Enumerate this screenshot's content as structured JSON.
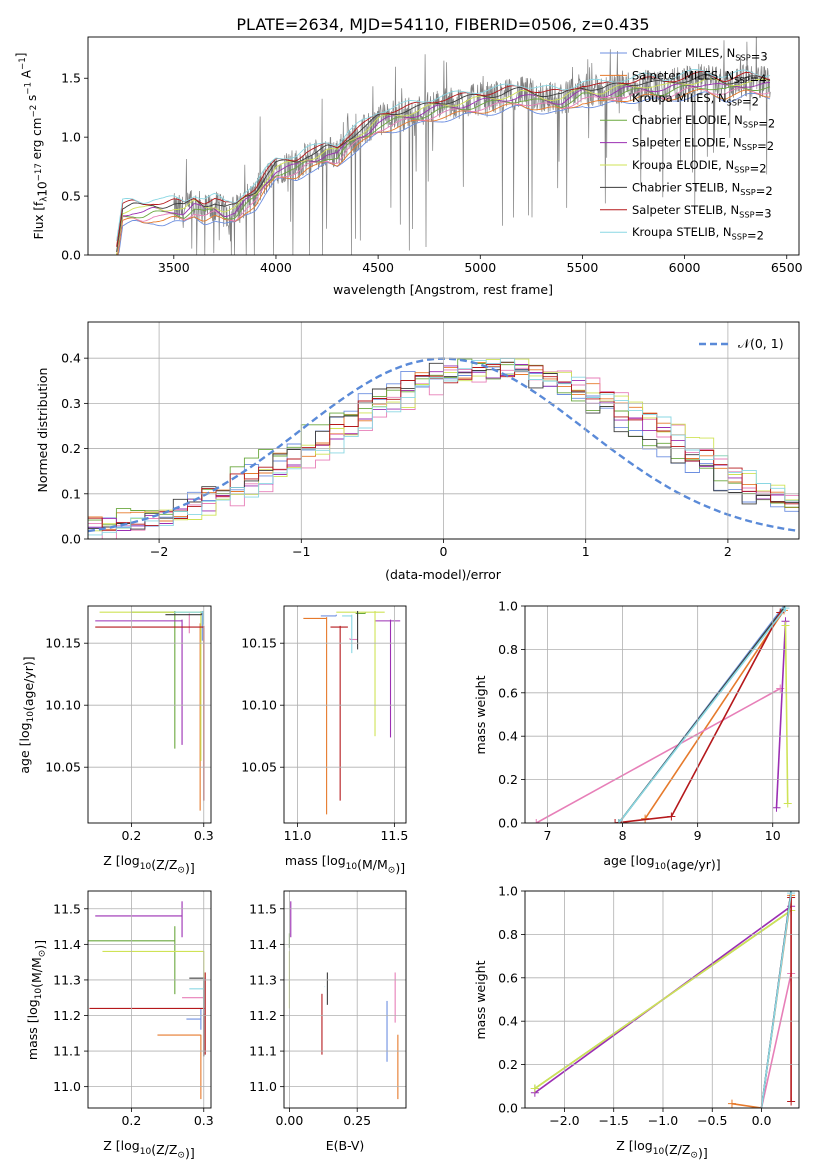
{
  "figure_title": "PLATE=2634, MJD=54110, FIBERID=0506, z=0.435",
  "colors": {
    "Chabrier MILES": "#6d8fe0",
    "Salpeter MILES": "#e67a2c",
    "Kroupa MILES": "#e77fb8",
    "Chabrier ELODIE": "#6aa83e",
    "Salpeter ELODIE": "#9b2fb3",
    "Kroupa ELODIE": "#cfe356",
    "Chabrier STELIB": "#3c3c3c",
    "Salpeter STELIB": "#b5191c",
    "Kroupa STELIB": "#8ad7e3",
    "data": "#808080",
    "gaussian": "#5a8ad8"
  },
  "chart_data": [
    {
      "id": "spectrum",
      "type": "line",
      "xlabel": "wavelength [Angstrom, rest frame]",
      "ylabel_main": "Flux [f",
      "ylabel_sub": "λ",
      "ylabel_rest": "10",
      "ylabel_exp": "−17",
      "ylabel_tail": " erg cm",
      "ylabel_exp2": "−2",
      "ylabel_s": " s",
      "ylabel_exp3": "−1",
      "ylabel_A": " A",
      "ylabel_exp4": "−1",
      "ylabel_end": "]",
      "xlim": [
        3080,
        6560
      ],
      "ylim": [
        0,
        1.85
      ],
      "xticks": [
        "3500",
        "4000",
        "4500",
        "5000",
        "5500",
        "6000",
        "6500"
      ],
      "yticks": [
        "0.0",
        "0.5",
        "1.0",
        "1.5"
      ],
      "legend": [
        {
          "model": "Chabrier MILES",
          "label": "Chabrier MILES, N",
          "nssp": "=3"
        },
        {
          "model": "Salpeter MILES",
          "label": "Salpeter MILES, N",
          "nssp": "=4"
        },
        {
          "model": "Kroupa MILES",
          "label": "Kroupa MILES, N",
          "nssp": "=2"
        },
        {
          "model": "Chabrier ELODIE",
          "label": "Chabrier ELODIE, N",
          "nssp": "=2"
        },
        {
          "model": "Salpeter ELODIE",
          "label": "Salpeter ELODIE, N",
          "nssp": "=2"
        },
        {
          "model": "Kroupa ELODIE",
          "label": "Kroupa ELODIE, N",
          "nssp": "=2"
        },
        {
          "model": "Chabrier STELIB",
          "label": "Chabrier STELIB, N",
          "nssp": "=2"
        },
        {
          "model": "Salpeter STELIB",
          "label": "Salpeter STELIB, N",
          "nssp": "=3"
        },
        {
          "model": "Kroupa STELIB",
          "label": "Kroupa STELIB, N",
          "nssp": "=2"
        }
      ],
      "nssp_sub": "SSP",
      "continuum_x": [
        3220,
        3250,
        3300,
        3350,
        3400,
        3450,
        3500,
        3550,
        3600,
        3650,
        3700,
        3750,
        3800,
        3850,
        3900,
        3950,
        4000,
        4050,
        4100,
        4150,
        4200,
        4250,
        4300,
        4350,
        4400,
        4450,
        4500,
        4550,
        4600,
        4700,
        4800,
        4900,
        5000,
        5100,
        5200,
        5300,
        5400,
        5500,
        5600,
        5700,
        5800,
        5900,
        6000,
        6100,
        6200,
        6300,
        6400
      ],
      "continuum_y": [
        0.0,
        0.35,
        0.37,
        0.36,
        0.38,
        0.37,
        0.38,
        0.36,
        0.42,
        0.38,
        0.4,
        0.35,
        0.36,
        0.45,
        0.5,
        0.62,
        0.72,
        0.74,
        0.75,
        0.8,
        0.82,
        0.86,
        0.85,
        0.94,
        1.0,
        1.05,
        1.12,
        1.15,
        1.17,
        1.2,
        1.25,
        1.27,
        1.3,
        1.32,
        1.35,
        1.32,
        1.3,
        1.38,
        1.36,
        1.4,
        1.42,
        1.4,
        1.44,
        1.46,
        1.42,
        1.45,
        1.44
      ],
      "data_range": [
        3500,
        6420
      ]
    },
    {
      "id": "residuals",
      "type": "line",
      "xlabel": "(data-model)/error",
      "ylabel": "Normed distribution",
      "xlim": [
        -2.5,
        2.5
      ],
      "ylim": [
        0,
        0.48
      ],
      "xticks": [
        "−2",
        "−1",
        "0",
        "1",
        "2"
      ],
      "yticks": [
        "0.0",
        "0.1",
        "0.2",
        "0.3",
        "0.4"
      ],
      "legend_label": "𝒩(0, 1)",
      "gaussian": {
        "mu": 0,
        "sigma": 1
      },
      "hist_peak_shift": 0.6,
      "hist_sigma": 1.15,
      "hist_peak": 0.38
    },
    {
      "id": "age_vs_Z",
      "type": "scatter",
      "xlabel": "Z [log",
      "xlabel_tail": "(Z/Z",
      "xlabel_end": ")]",
      "ylabel": "age  [log",
      "ylabel_tail": "(age/yr)]",
      "xlim": [
        0.14,
        0.31
      ],
      "ylim": [
        10.005,
        10.18
      ],
      "xticks": [
        "0.2",
        "0.3"
      ],
      "yticks": [
        "10.05",
        "10.10",
        "10.15"
      ],
      "points": [
        {
          "model": "Chabrier MILES",
          "x": 0.298,
          "y": 10.172,
          "xerr": 0.0,
          "yerr_lo": 0.02,
          "yerr_hi": 0.003
        },
        {
          "model": "Salpeter MILES",
          "x": 0.295,
          "y": 10.165,
          "xerr": 0.0,
          "yerr_lo": 0.15,
          "yerr_hi": 0.0
        },
        {
          "model": "Kroupa MILES",
          "x": 0.28,
          "y": 10.168,
          "xerr": 0.0,
          "yerr_lo": 0.01,
          "yerr_hi": 0.005
        },
        {
          "model": "Chabrier ELODIE",
          "x": 0.26,
          "y": 10.175,
          "xerr": 0.06,
          "yerr_lo": 0.11,
          "yerr_hi": 0.0
        },
        {
          "model": "Salpeter ELODIE",
          "x": 0.27,
          "y": 10.168,
          "xerr": 0.12,
          "yerr_lo": 0.1,
          "yerr_hi": 0.0
        },
        {
          "model": "Kroupa ELODIE",
          "x": 0.296,
          "y": 10.175,
          "xerr": 0.14,
          "yerr_lo": 0.12,
          "yerr_hi": 0.0
        },
        {
          "model": "Chabrier STELIB",
          "x": 0.297,
          "y": 10.173,
          "xerr": 0.05,
          "yerr_lo": 0.0,
          "yerr_hi": 0.0
        },
        {
          "model": "Salpeter STELIB",
          "x": 0.3,
          "y": 10.163,
          "xerr": 0.15,
          "yerr_lo": 0.14,
          "yerr_hi": 0.0
        },
        {
          "model": "Kroupa STELIB",
          "x": 0.299,
          "y": 10.175,
          "xerr": 0.04,
          "yerr_lo": 0.01,
          "yerr_hi": 0.0
        }
      ]
    },
    {
      "id": "age_vs_mass",
      "type": "scatter",
      "xlabel": "mass [log",
      "xlabel_tail": "(M/M",
      "xlabel_end": ")]",
      "xlim": [
        10.93,
        11.56
      ],
      "ylim": [
        10.005,
        10.18
      ],
      "xticks": [
        "11.0",
        "11.5"
      ],
      "yticks": [
        "10.05",
        "10.10",
        "10.15"
      ],
      "points": [
        {
          "model": "Chabrier MILES",
          "x": 11.2,
          "y": 10.172,
          "xerr_lo": 0.08,
          "xerr_hi": 0.0,
          "yerr_lo": 0.0
        },
        {
          "model": "Salpeter MILES",
          "x": 11.15,
          "y": 10.17,
          "xerr_lo": 0.12,
          "xerr_hi": 0.0,
          "yerr_lo": 0.158
        },
        {
          "model": "Kroupa MILES",
          "x": 11.27,
          "y": 10.153,
          "xerr_lo": 0.0,
          "xerr_hi": 0.04,
          "yerr_lo": 0.0
        },
        {
          "model": "Chabrier ELODIE",
          "x": 11.35,
          "y": 10.174,
          "xerr_lo": 0.05,
          "xerr_hi": 0.0,
          "yerr_lo": 0.0
        },
        {
          "model": "Salpeter ELODIE",
          "x": 11.48,
          "y": 10.168,
          "xerr_lo": 0.08,
          "xerr_hi": 0.05,
          "yerr_lo": 0.094
        },
        {
          "model": "Kroupa ELODIE",
          "x": 11.4,
          "y": 10.175,
          "xerr_lo": 0.2,
          "xerr_hi": 0.05,
          "yerr_lo": 0.1
        },
        {
          "model": "Chabrier STELIB",
          "x": 11.31,
          "y": 10.175,
          "xerr_lo": 0.0,
          "xerr_hi": 0.0,
          "yerr_lo": 0.03
        },
        {
          "model": "Salpeter STELIB",
          "x": 11.22,
          "y": 10.163,
          "xerr_lo": 0.05,
          "xerr_hi": 0.04,
          "yerr_lo": 0.14
        },
        {
          "model": "Kroupa STELIB",
          "x": 11.28,
          "y": 10.172,
          "xerr_lo": 0.05,
          "xerr_hi": 0.0,
          "yerr_lo": 0.03
        }
      ]
    },
    {
      "id": "massweight_vs_age",
      "type": "line",
      "xlabel": "age  [log",
      "xlabel_tail": "(age/yr)]",
      "ylabel": "mass weight",
      "xlim": [
        6.7,
        10.35
      ],
      "ylim": [
        0,
        1.0
      ],
      "xticks": [
        "7",
        "8",
        "9",
        "10"
      ],
      "yticks": [
        "0.0",
        "0.2",
        "0.4",
        "0.6",
        "0.8",
        "1.0"
      ],
      "series": [
        {
          "model": "Chabrier MILES",
          "x": [
            7.95,
            10.15
          ],
          "y": [
            0.0,
            1.0
          ]
        },
        {
          "model": "Salpeter MILES",
          "x": [
            8.3,
            10.15
          ],
          "y": [
            0.02,
            0.98
          ]
        },
        {
          "model": "Kroupa MILES",
          "x": [
            6.85,
            10.1
          ],
          "y": [
            0.0,
            0.62
          ]
        },
        {
          "model": "Chabrier ELODIE",
          "x": [
            7.95,
            10.17
          ],
          "y": [
            0.0,
            1.0
          ]
        },
        {
          "model": "Salpeter ELODIE",
          "x": [
            10.05,
            10.17
          ],
          "y": [
            0.07,
            0.93
          ]
        },
        {
          "model": "Kroupa ELODIE",
          "x": [
            10.2,
            10.17
          ],
          "y": [
            0.09,
            0.91
          ]
        },
        {
          "model": "Chabrier STELIB",
          "x": [
            7.95,
            10.17
          ],
          "y": [
            0.0,
            1.0
          ]
        },
        {
          "model": "Salpeter STELIB",
          "x": [
            7.9,
            8.65,
            10.1
          ],
          "y": [
            0.0,
            0.03,
            0.97
          ]
        },
        {
          "model": "Kroupa STELIB",
          "x": [
            7.95,
            10.17
          ],
          "y": [
            0.0,
            0.99
          ]
        }
      ]
    },
    {
      "id": "mass_vs_Z",
      "type": "scatter",
      "xlabel": "Z [log",
      "xlabel_tail": "(Z/Z",
      "xlabel_end": ")]",
      "ylabel": "mass [log",
      "ylabel_tail": "(M/M",
      "ylabel_end": ")]",
      "xlim": [
        0.14,
        0.31
      ],
      "ylim": [
        10.94,
        11.55
      ],
      "xticks": [
        "0.2",
        "0.3"
      ],
      "yticks": [
        "11.0",
        "11.1",
        "11.2",
        "11.3",
        "11.4",
        "11.5"
      ],
      "points": [
        {
          "model": "Chabrier MILES",
          "x": 0.296,
          "y": 11.19,
          "xerr": 0.02,
          "yerr_lo": 0.03,
          "yerr_hi": 0.03
        },
        {
          "model": "Salpeter MILES",
          "x": 0.296,
          "y": 11.145,
          "xerr": 0.06,
          "yerr_lo": 0.18,
          "yerr_hi": 0.0
        },
        {
          "model": "Kroupa MILES",
          "x": 0.3,
          "y": 11.25,
          "xerr": 0.03,
          "yerr_lo": 0.05,
          "yerr_hi": 0.05
        },
        {
          "model": "Chabrier ELODIE",
          "x": 0.26,
          "y": 11.41,
          "xerr": 0.12,
          "yerr_lo": 0.15,
          "yerr_hi": 0.04
        },
        {
          "model": "Salpeter ELODIE",
          "x": 0.27,
          "y": 11.48,
          "xerr": 0.12,
          "yerr_lo": 0.06,
          "yerr_hi": 0.04
        },
        {
          "model": "Kroupa ELODIE",
          "x": 0.3,
          "y": 11.38,
          "xerr": 0.14,
          "yerr_lo": 0.16,
          "yerr_hi": 0.0
        },
        {
          "model": "Chabrier STELIB",
          "x": 0.3,
          "y": 11.305,
          "xerr": 0.02,
          "yerr_lo": 0.22,
          "yerr_hi": 0.0
        },
        {
          "model": "Salpeter STELIB",
          "x": 0.302,
          "y": 11.22,
          "xerr": 0.16,
          "yerr_lo": 0.13,
          "yerr_hi": 0.1
        },
        {
          "model": "Kroupa STELIB",
          "x": 0.3,
          "y": 11.275,
          "xerr": 0.02,
          "yerr_lo": 0.07,
          "yerr_hi": 0.03
        }
      ]
    },
    {
      "id": "mass_vs_EBV",
      "type": "scatter",
      "xlabel": "E(B-V)",
      "xlim": [
        -0.02,
        0.43
      ],
      "ylim": [
        10.94,
        11.55
      ],
      "xticks": [
        "0.00",
        "0.25"
      ],
      "yticks": [
        "11.0",
        "11.1",
        "11.2",
        "11.3",
        "11.4",
        "11.5"
      ],
      "points": [
        {
          "model": "Chabrier MILES",
          "x": 0.36,
          "y": 11.19,
          "yerr_lo": 0.12,
          "yerr_hi": 0.05
        },
        {
          "model": "Salpeter MILES",
          "x": 0.4,
          "y": 11.145,
          "yerr_lo": 0.18,
          "yerr_hi": 0.0
        },
        {
          "model": "Kroupa MILES",
          "x": 0.39,
          "y": 11.25,
          "yerr_lo": 0.07,
          "yerr_hi": 0.07
        },
        {
          "model": "Chabrier ELODIE",
          "x": 0.0,
          "y": 11.41,
          "yerr_lo": 0.02,
          "yerr_hi": 0.02
        },
        {
          "model": "Salpeter ELODIE",
          "x": 0.005,
          "y": 11.48,
          "yerr_lo": 0.06,
          "yerr_hi": 0.04
        },
        {
          "model": "Kroupa ELODIE",
          "x": 0.0,
          "y": 11.38,
          "yerr_lo": 0.16,
          "yerr_hi": 0.0
        },
        {
          "model": "Chabrier STELIB",
          "x": 0.14,
          "y": 11.28,
          "yerr_lo": 0.05,
          "yerr_hi": 0.04
        },
        {
          "model": "Salpeter STELIB",
          "x": 0.12,
          "y": 11.19,
          "yerr_lo": 0.1,
          "yerr_hi": 0.07
        },
        {
          "model": "Kroupa STELIB",
          "x": 0.13,
          "y": 11.28,
          "yerr_lo": 0.0,
          "yerr_hi": 0.0
        }
      ]
    },
    {
      "id": "massweight_vs_Z",
      "type": "line",
      "xlabel": "Z [log",
      "xlabel_tail": "(Z/Z",
      "xlabel_end": ")]",
      "ylabel": "mass weight",
      "xlim": [
        -2.4,
        0.38
      ],
      "ylim": [
        0,
        1.0
      ],
      "xticks": [
        "−2.0",
        "−1.5",
        "−1.0",
        "−0.5",
        "0.0"
      ],
      "yticks": [
        "0.0",
        "0.2",
        "0.4",
        "0.6",
        "0.8",
        "1.0"
      ],
      "series": [
        {
          "model": "Chabrier MILES",
          "x": [
            0.0,
            0.3
          ],
          "y": [
            0.0,
            1.0
          ]
        },
        {
          "model": "Salpeter MILES",
          "x": [
            -0.3,
            0.0,
            0.3
          ],
          "y": [
            0.02,
            0.0,
            0.98
          ]
        },
        {
          "model": "Kroupa MILES",
          "x": [
            0.0,
            0.3
          ],
          "y": [
            0.0,
            0.62
          ]
        },
        {
          "model": "Chabrier ELODIE",
          "x": [
            -2.3,
            0.3
          ],
          "y": [
            0.09,
            0.91
          ]
        },
        {
          "model": "Salpeter ELODIE",
          "x": [
            -2.3,
            0.3
          ],
          "y": [
            0.07,
            0.93
          ]
        },
        {
          "model": "Kroupa ELODIE",
          "x": [
            -2.3,
            0.3
          ],
          "y": [
            0.09,
            0.91
          ]
        },
        {
          "model": "Chabrier STELIB",
          "x": [
            0.0,
            0.3
          ],
          "y": [
            0.0,
            1.0
          ]
        },
        {
          "model": "Salpeter STELIB",
          "x": [
            0.3,
            0.3
          ],
          "y": [
            0.03,
            0.97
          ]
        },
        {
          "model": "Kroupa STELIB",
          "x": [
            0.0,
            0.3
          ],
          "y": [
            0.0,
            0.99
          ]
        }
      ]
    }
  ]
}
